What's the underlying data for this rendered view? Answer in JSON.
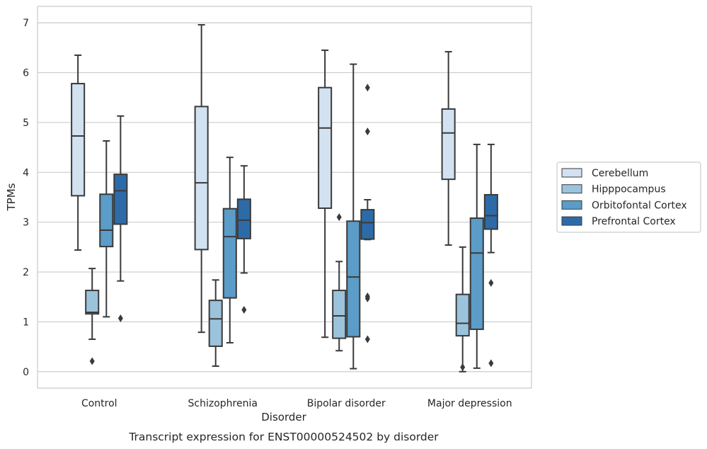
{
  "chart_data": {
    "type": "box",
    "xlabel": "Disorder",
    "ylabel": "TPMs",
    "caption": "Transcript expression for ENST00000524502 by disorder",
    "categories": [
      "Control",
      "Schizophrenia",
      "Bipolar disorder",
      "Major depression"
    ],
    "ylim": [
      -0.33,
      7.33
    ],
    "yticks": [
      0,
      1,
      2,
      3,
      4,
      5,
      6,
      7
    ],
    "grid": "horizontal",
    "legend_position": "right",
    "series": [
      {
        "name": "Cerebellum",
        "color": "#d2e2f1",
        "boxes": [
          {
            "whisker_low": 2.44,
            "q1": 3.53,
            "median": 4.73,
            "q3": 5.78,
            "whisker_high": 6.35,
            "outliers": []
          },
          {
            "whisker_low": 0.79,
            "q1": 2.45,
            "median": 3.79,
            "q3": 5.32,
            "whisker_high": 6.96,
            "outliers": []
          },
          {
            "whisker_low": 0.69,
            "q1": 3.28,
            "median": 4.89,
            "q3": 5.7,
            "whisker_high": 6.45,
            "outliers": []
          },
          {
            "whisker_low": 2.54,
            "q1": 3.86,
            "median": 4.79,
            "q3": 5.27,
            "whisker_high": 6.42,
            "outliers": []
          }
        ]
      },
      {
        "name": "Hipppocampus",
        "color": "#9cc3dc",
        "boxes": [
          {
            "whisker_low": 0.65,
            "q1": 1.16,
            "median": 1.19,
            "q3": 1.63,
            "whisker_high": 2.07,
            "outliers": [
              0.21
            ]
          },
          {
            "whisker_low": 0.11,
            "q1": 0.51,
            "median": 1.06,
            "q3": 1.43,
            "whisker_high": 1.84,
            "outliers": []
          },
          {
            "whisker_low": 0.42,
            "q1": 0.67,
            "median": 1.12,
            "q3": 1.63,
            "whisker_high": 2.21,
            "outliers": [
              3.1
            ]
          },
          {
            "whisker_low": 0.0,
            "q1": 0.72,
            "median": 0.97,
            "q3": 1.55,
            "whisker_high": 2.5,
            "outliers": [
              0.09
            ]
          }
        ]
      },
      {
        "name": "Orbitofontal Cortex",
        "color": "#5b9cc8",
        "boxes": [
          {
            "whisker_low": 1.1,
            "q1": 2.51,
            "median": 2.84,
            "q3": 3.56,
            "whisker_high": 4.63,
            "outliers": []
          },
          {
            "whisker_low": 0.58,
            "q1": 1.48,
            "median": 2.71,
            "q3": 3.27,
            "whisker_high": 4.3,
            "outliers": []
          },
          {
            "whisker_low": 0.06,
            "q1": 0.7,
            "median": 1.9,
            "q3": 3.02,
            "whisker_high": 6.17,
            "outliers": []
          },
          {
            "whisker_low": 0.07,
            "q1": 0.85,
            "median": 2.38,
            "q3": 3.08,
            "whisker_high": 4.56,
            "outliers": []
          }
        ]
      },
      {
        "name": "Prefrontal Cortex",
        "color": "#2d6ba8",
        "boxes": [
          {
            "whisker_low": 1.82,
            "q1": 2.96,
            "median": 3.63,
            "q3": 3.96,
            "whisker_high": 5.13,
            "outliers": [
              1.07
            ]
          },
          {
            "whisker_low": 1.98,
            "q1": 2.67,
            "median": 3.04,
            "q3": 3.46,
            "whisker_high": 4.13,
            "outliers": [
              1.24
            ]
          },
          {
            "whisker_low": 2.65,
            "q1": 2.66,
            "median": 2.99,
            "q3": 3.25,
            "whisker_high": 3.45,
            "outliers": [
              0.65,
              1.47,
              1.51,
              4.82,
              5.7
            ]
          },
          {
            "whisker_low": 2.39,
            "q1": 2.86,
            "median": 3.13,
            "q3": 3.55,
            "whisker_high": 4.56,
            "outliers": [
              0.17,
              1.78
            ]
          }
        ]
      }
    ]
  }
}
